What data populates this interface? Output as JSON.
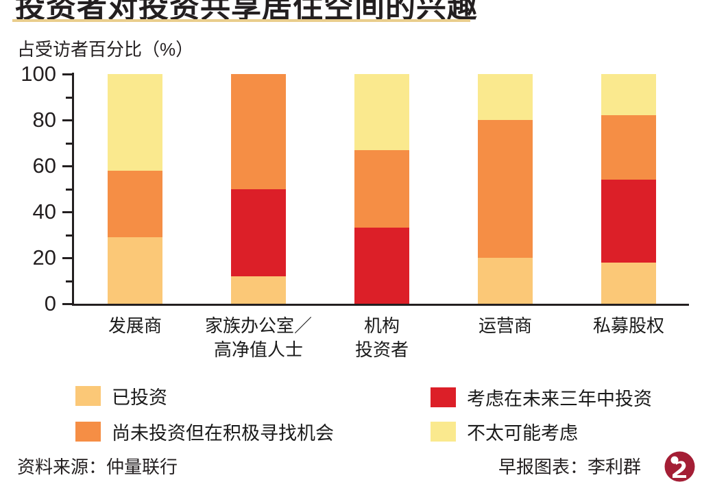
{
  "title": "投资者对投资共享居住空间的兴趣",
  "subtitle": "占受访者百分比（%）",
  "colors": {
    "already_invested": "#fbc877",
    "considering_3yr": "#dc1f28",
    "not_yet_searching": "#f58e45",
    "unlikely": "#fae98e",
    "title_underline": "#e9cd8c",
    "axis": "#231f20",
    "logo_maroon": "#a41e35"
  },
  "chart_data": {
    "type": "bar",
    "stacked": true,
    "title": "投资者对投资共享居住空间的兴趣",
    "ylabel": "占受访者百分比（%）",
    "xlabel": "",
    "ylim": [
      0,
      100
    ],
    "yticks_major": [
      0,
      20,
      40,
      60,
      80,
      100
    ],
    "yticks_minor": [
      10,
      30,
      50,
      70,
      90
    ],
    "grid": false,
    "legend_position": "bottom",
    "categories": [
      "发展商",
      "家族办公室／\n高净值人士",
      "机构\n投资者",
      "运营商",
      "私募股权"
    ],
    "series": [
      {
        "name": "已投资",
        "color_key": "already_invested",
        "values": [
          29,
          12,
          0,
          20,
          18
        ]
      },
      {
        "name": "考虑在未来三年中投资",
        "color_key": "considering_3yr",
        "values": [
          0,
          38,
          33,
          0,
          36
        ]
      },
      {
        "name": "尚未投资但在积极寻找机会",
        "color_key": "not_yet_searching",
        "values": [
          29,
          50,
          34,
          60,
          28
        ]
      },
      {
        "name": "不太可能考虑",
        "color_key": "unlikely",
        "values": [
          42,
          0,
          33,
          20,
          18
        ]
      }
    ]
  },
  "legend": {
    "items": [
      {
        "label": "已投资",
        "color_key": "already_invested"
      },
      {
        "label": "尚未投资但在积极寻找机会",
        "color_key": "not_yet_searching"
      },
      {
        "label": "考虑在未来三年中投资",
        "color_key": "considering_3yr"
      },
      {
        "label": "不太可能考虑",
        "color_key": "unlikely"
      }
    ]
  },
  "footer": {
    "source": "资料来源：仲量联行",
    "credit": "早报图表：李利群",
    "logo_name": "zaobao-logo"
  }
}
